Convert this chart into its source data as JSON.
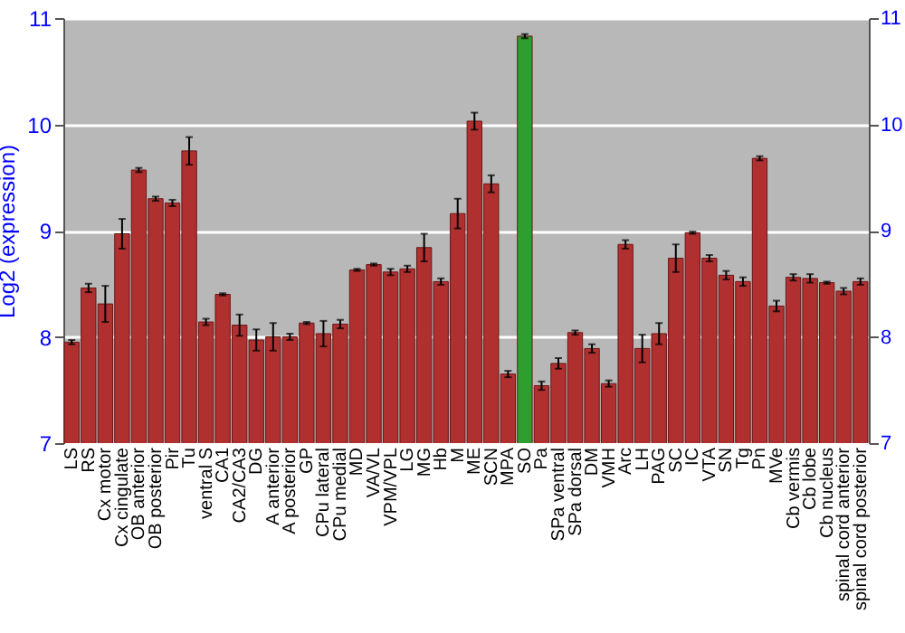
{
  "chart_data": {
    "type": "bar",
    "ylabel": "Log2 (expression)",
    "categories": [
      "LS",
      "RS",
      "Cx motor",
      "Cx cingulate",
      "OB anterior",
      "OB posterior",
      "Pir",
      "Tu",
      "ventral S",
      "CA1",
      "CA2/CA3",
      "DG",
      "A anterior",
      "A posterior",
      "GP",
      "CPu lateral",
      "CPu medial",
      "MD",
      "VA/VL",
      "VPM/VPL",
      "LG",
      "MG",
      "Hb",
      "M",
      "ME",
      "SCN",
      "MPA",
      "SO",
      "Pa",
      "SPa ventral",
      "SPa dorsal",
      "DM",
      "VMH",
      "Arc",
      "LH",
      "PAG",
      "SC",
      "IC",
      "VTA",
      "SN",
      "Tg",
      "Pn",
      "MVe",
      "Cb vermis",
      "Cb lobe",
      "Cb nucleus",
      "spinal cord anterior",
      "spinal cord posterior"
    ],
    "values": [
      7.95,
      8.46,
      8.31,
      8.97,
      9.57,
      9.3,
      9.26,
      9.75,
      8.14,
      8.4,
      8.11,
      7.97,
      8.0,
      8.0,
      8.13,
      8.03,
      8.12,
      8.63,
      8.68,
      8.61,
      8.64,
      8.84,
      8.52,
      9.16,
      10.03,
      9.44,
      7.65,
      10.83,
      7.54,
      7.75,
      8.04,
      7.89,
      7.56,
      8.87,
      7.89,
      8.03,
      8.74,
      8.98,
      8.74,
      8.58,
      8.52,
      9.68,
      8.29,
      8.56,
      8.55,
      8.51,
      8.43,
      8.52
    ],
    "errors": [
      0.02,
      0.04,
      0.17,
      0.14,
      0.02,
      0.02,
      0.03,
      0.13,
      0.03,
      0.01,
      0.1,
      0.1,
      0.13,
      0.03,
      0.01,
      0.12,
      0.04,
      0.01,
      0.01,
      0.03,
      0.03,
      0.13,
      0.03,
      0.14,
      0.08,
      0.08,
      0.03,
      0.02,
      0.04,
      0.05,
      0.02,
      0.04,
      0.03,
      0.04,
      0.13,
      0.1,
      0.13,
      0.01,
      0.03,
      0.04,
      0.04,
      0.02,
      0.05,
      0.03,
      0.04,
      0.01,
      0.03,
      0.03
    ],
    "colors": [
      "#b03030",
      "#b03030",
      "#b03030",
      "#b03030",
      "#b03030",
      "#b03030",
      "#b03030",
      "#b03030",
      "#b03030",
      "#b03030",
      "#b03030",
      "#b03030",
      "#b03030",
      "#b03030",
      "#b03030",
      "#b03030",
      "#b03030",
      "#b03030",
      "#b03030",
      "#b03030",
      "#b03030",
      "#b03030",
      "#b03030",
      "#b03030",
      "#b03030",
      "#b03030",
      "#b03030",
      "#2e9e2e",
      "#b03030",
      "#b03030",
      "#b03030",
      "#b03030",
      "#b03030",
      "#b03030",
      "#b03030",
      "#b03030",
      "#b03030",
      "#b03030",
      "#b03030",
      "#b03030",
      "#b03030",
      "#b03030",
      "#b03030",
      "#b03030",
      "#b03030",
      "#b03030",
      "#b03030",
      "#b03030"
    ],
    "ylim": [
      7,
      11
    ],
    "yticks": [
      7,
      8,
      9,
      10,
      11
    ],
    "y2lim": [
      7,
      11
    ],
    "y2ticks": [
      7,
      8,
      9,
      10,
      11
    ],
    "grid": "y"
  }
}
